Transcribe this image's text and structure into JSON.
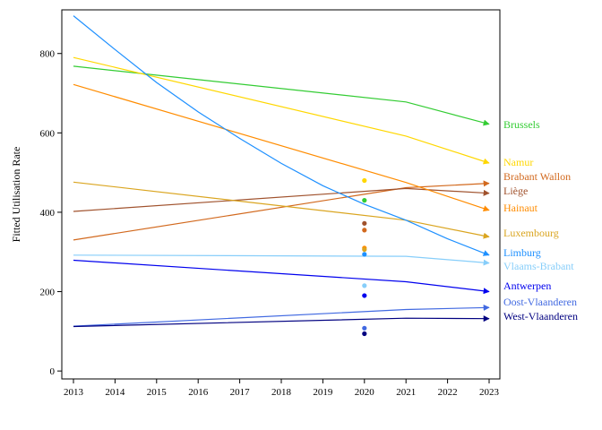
{
  "chart_data": {
    "type": "line",
    "title": "",
    "xlabel": "",
    "ylabel": "Fitted Utilisation Rate",
    "xlim": [
      2013,
      2023
    ],
    "ylim": [
      -20,
      910
    ],
    "x_ticks": [
      2013,
      2014,
      2015,
      2016,
      2017,
      2018,
      2019,
      2020,
      2021,
      2022,
      2023
    ],
    "y_ticks": [
      0,
      200,
      400,
      600,
      800
    ],
    "grid": false,
    "legend": "end-of-line labels at right",
    "series": [
      {
        "name": "Brussels",
        "color": "#33cc33",
        "x": [
          2013,
          2021,
          2023
        ],
        "y": [
          768,
          678,
          622
        ],
        "point_2020": 430
      },
      {
        "name": "Namur",
        "color": "#ffd700",
        "x": [
          2013,
          2021,
          2023
        ],
        "y": [
          790,
          592,
          524
        ],
        "point_2020": 480
      },
      {
        "name": "Brabant Wallon",
        "color": "#d2691e",
        "x": [
          2013,
          2021,
          2023
        ],
        "y": [
          330,
          462,
          473
        ],
        "point_2020": 355
      },
      {
        "name": "Liège",
        "color": "#a0522d",
        "x": [
          2013,
          2021,
          2023
        ],
        "y": [
          402,
          460,
          448
        ],
        "point_2020": 372
      },
      {
        "name": "Hainaut",
        "color": "#ff8c00",
        "x": [
          2013,
          2021,
          2023
        ],
        "y": [
          722,
          475,
          405
        ],
        "point_2020": 310
      },
      {
        "name": "Luxembourg",
        "color": "#daa520",
        "x": [
          2013,
          2021,
          2023
        ],
        "y": [
          476,
          380,
          338
        ],
        "point_2020": 306
      },
      {
        "name": "Limburg",
        "color": "#1e90ff",
        "x": [
          2013,
          2014,
          2015,
          2016,
          2017,
          2018,
          2019,
          2020,
          2021,
          2022,
          2023
        ],
        "y": [
          895,
          810,
          727,
          653,
          586,
          523,
          467,
          420,
          380,
          333,
          292
        ],
        "point_2020": 294
      },
      {
        "name": "Vlaams-Brabant",
        "color": "#87cefa",
        "x": [
          2013,
          2021,
          2023
        ],
        "y": [
          292,
          289,
          272
        ],
        "point_2020": 215
      },
      {
        "name": "Antwerpen",
        "color": "#0000ee",
        "x": [
          2013,
          2021,
          2023
        ],
        "y": [
          279,
          225,
          200
        ],
        "point_2020": 190
      },
      {
        "name": "Oost-Vlaanderen",
        "color": "#4169e1",
        "x": [
          2013,
          2021,
          2023
        ],
        "y": [
          113,
          155,
          160
        ],
        "point_2020": 108
      },
      {
        "name": "West-Vlaanderen",
        "color": "#000080",
        "x": [
          2013,
          2021,
          2023
        ],
        "y": [
          112,
          133,
          132
        ],
        "point_2020": 94
      }
    ]
  }
}
